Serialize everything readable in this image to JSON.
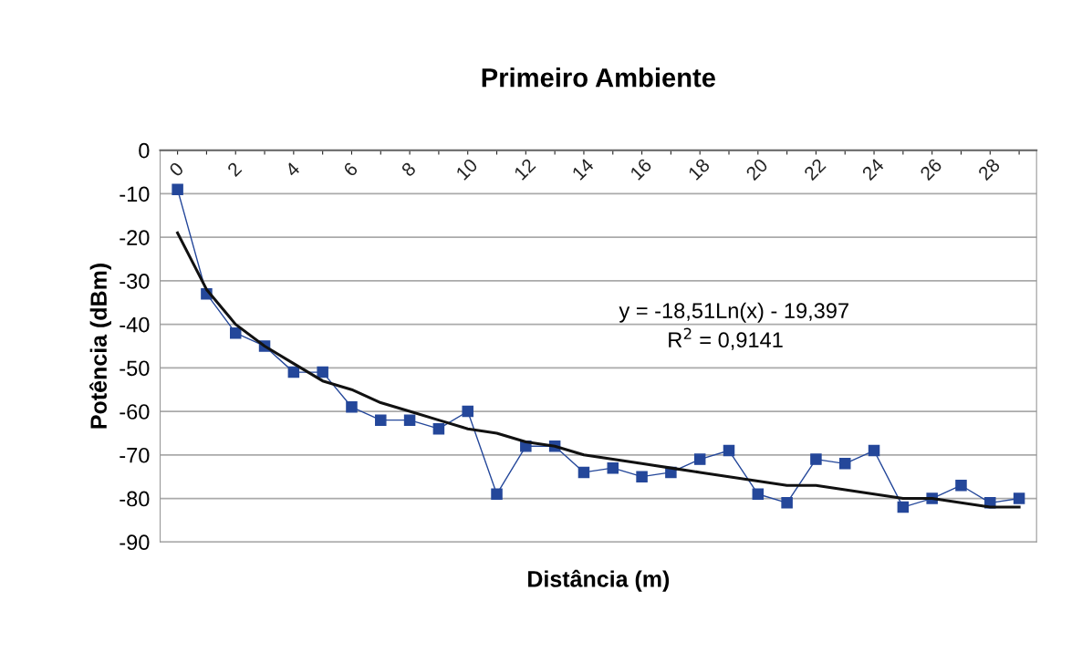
{
  "chart_data": {
    "type": "line",
    "title": "Primeiro Ambiente",
    "xlabel": "Distância (m)",
    "ylabel": "Potência (dBm)",
    "categories": [
      "0",
      null,
      "2",
      null,
      "4",
      null,
      "6",
      null,
      "8",
      null,
      "10",
      null,
      "12",
      null,
      "14",
      null,
      "16",
      null,
      "18",
      null,
      "20",
      null,
      "22",
      null,
      "24",
      null,
      "26",
      null,
      "28",
      null
    ],
    "series": [
      {
        "color": "#24479a",
        "marker": "square",
        "values": [
          -9,
          -33,
          -42,
          -45,
          -51,
          -51,
          -59,
          -62,
          -62,
          -64,
          -60,
          -79,
          -68,
          -68,
          -74,
          -73,
          -75,
          -74,
          -71,
          -69,
          -79,
          -81,
          -71,
          -72,
          -69,
          -82,
          -80,
          -77,
          -81,
          -80
        ]
      },
      {
        "color": "#111111",
        "marker": "none",
        "values": [
          -19,
          -32,
          -40,
          -45,
          -49,
          -53,
          -55,
          -58,
          -60,
          -62,
          -64,
          -65,
          -67,
          -68,
          -70,
          -71,
          -72,
          -73,
          -74,
          -75,
          -76,
          -77,
          -77,
          -78,
          -79,
          -80,
          -80,
          -81,
          -82,
          -82
        ]
      }
    ],
    "ylim": [
      -90,
      0
    ],
    "yticks": [
      -90,
      -80,
      -70,
      -60,
      -50,
      -40,
      -30,
      -20,
      -10,
      0
    ],
    "grid": "y",
    "annotations": [
      "y = -18,51Ln(x) - 19,397",
      "R$^{2}$ = 0,9141"
    ]
  }
}
